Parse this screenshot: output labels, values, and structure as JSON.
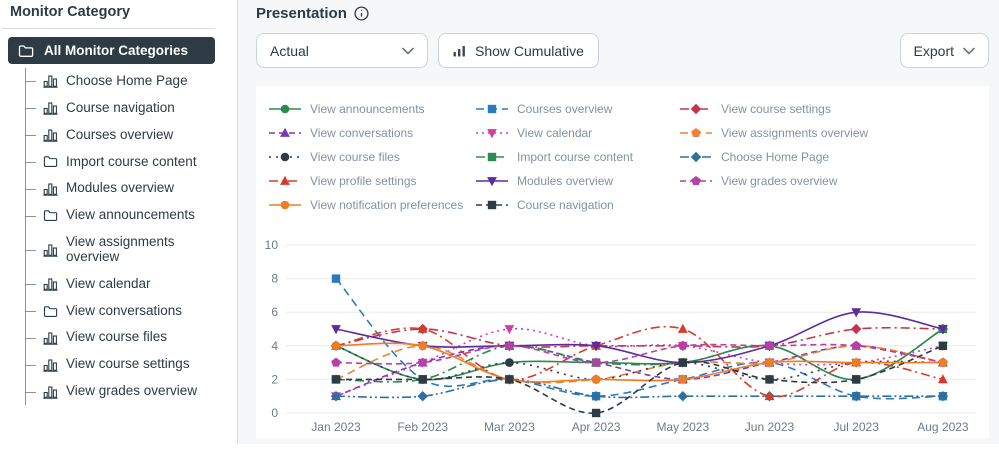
{
  "sidebar": {
    "title": "Monitor Category",
    "selected": {
      "label": "All Monitor Categories",
      "icon": "folder-icon"
    },
    "items": [
      {
        "label": "Choose Home Page",
        "icon": "bar-chart"
      },
      {
        "label": "Course navigation",
        "icon": "bar-chart"
      },
      {
        "label": "Courses overview",
        "icon": "bar-chart"
      },
      {
        "label": "Import course content",
        "icon": "folder"
      },
      {
        "label": "Modules overview",
        "icon": "bar-chart"
      },
      {
        "label": "View announcements",
        "icon": "folder"
      },
      {
        "label": "View assignments overview",
        "icon": "bar-chart"
      },
      {
        "label": "View calendar",
        "icon": "bar-chart"
      },
      {
        "label": "View conversations",
        "icon": "folder"
      },
      {
        "label": "View course files",
        "icon": "bar-chart"
      },
      {
        "label": "View course settings",
        "icon": "bar-chart"
      },
      {
        "label": "View grades overview",
        "icon": "bar-chart"
      }
    ]
  },
  "header": {
    "title": "Presentation"
  },
  "toolbar": {
    "mode_select_value": "Actual",
    "cumulative_label": "Show Cumulative",
    "export_label": "Export"
  },
  "colors": {
    "text_dark": "#2d3b45",
    "text_gray": "#8591a0",
    "axis_gray": "#6f7b85",
    "grid": "#e9ebed",
    "selected_bg": "#2d3b45"
  },
  "chart_data": {
    "type": "line",
    "x": [
      "Jan 2023",
      "Feb 2023",
      "Mar 2023",
      "Apr 2023",
      "May 2023",
      "Jun 2023",
      "Jul 2023",
      "Aug 2023"
    ],
    "ylim": [
      0,
      10
    ],
    "yticks": [
      0,
      2,
      4,
      6,
      8,
      10
    ],
    "grid": true,
    "legend_position": "top",
    "series": [
      {
        "name": "View announcements",
        "color": "#2d8a4d",
        "marker": "circle",
        "dash": "",
        "values": [
          4,
          2,
          3,
          3,
          3,
          4,
          2,
          5
        ]
      },
      {
        "name": "Courses overview",
        "color": "#2b7abf",
        "marker": "square",
        "dash": "8,5",
        "values": [
          8,
          2,
          2,
          1,
          2,
          3,
          1,
          1
        ]
      },
      {
        "name": "View course settings",
        "color": "#c5344c",
        "marker": "diamond",
        "dash": "9,4,2,4",
        "values": [
          4,
          5,
          4,
          4,
          4,
          4,
          5,
          5
        ]
      },
      {
        "name": "View conversations",
        "color": "#7b3ab5",
        "marker": "triangle-up",
        "dash": "6,4",
        "values": [
          1,
          3,
          4,
          3,
          2,
          3,
          4,
          3
        ]
      },
      {
        "name": "View calendar",
        "color": "#ce3fa6",
        "marker": "triangle-down",
        "dash": "2,4",
        "values": [
          1,
          3,
          5,
          4,
          4,
          3,
          3,
          4
        ]
      },
      {
        "name": "View assignments overview",
        "color": "#ee8133",
        "marker": "pentagon",
        "dash": "8,5",
        "values": [
          2,
          4,
          2,
          2,
          3,
          3,
          4,
          3
        ]
      },
      {
        "name": "View course files",
        "color": "#2d3b48",
        "marker": "circle",
        "dash": "2,5",
        "values": [
          4,
          2,
          3,
          2,
          3,
          2,
          3,
          3
        ]
      },
      {
        "name": "Import course content",
        "color": "#2e8b50",
        "marker": "square",
        "dash": "9,4,2,4",
        "values": [
          2,
          2,
          4,
          3,
          3,
          4,
          2,
          5
        ]
      },
      {
        "name": "Choose Home Page",
        "color": "#2f6f9f",
        "marker": "diamond",
        "dash": "9,3,2,3,2,3",
        "values": [
          1,
          1,
          2,
          1,
          1,
          1,
          1,
          1
        ]
      },
      {
        "name": "View profile settings",
        "color": "#d93a2b",
        "marker": "triangle-up",
        "dash": "9,4,2,4",
        "values": [
          4,
          5,
          2,
          4,
          5,
          1,
          3,
          2
        ]
      },
      {
        "name": "Modules overview",
        "color": "#5d2ba0",
        "marker": "triangle-down",
        "dash": "",
        "values": [
          5,
          4,
          4,
          4,
          3,
          4,
          6,
          5
        ]
      },
      {
        "name": "View grades overview",
        "color": "#b83fa5",
        "marker": "pentagon",
        "dash": "6,4",
        "values": [
          3,
          3,
          4,
          3,
          4,
          4,
          4,
          3
        ]
      },
      {
        "name": "View notification preferences",
        "color": "#ef7d23",
        "marker": "circle",
        "dash": "",
        "values": [
          4,
          4,
          2,
          2,
          2,
          3,
          3,
          3
        ]
      },
      {
        "name": "Course navigation",
        "color": "#2d3b45",
        "marker": "square",
        "dash": "6,4",
        "values": [
          2,
          2,
          2,
          0,
          3,
          2,
          2,
          4
        ]
      }
    ]
  }
}
